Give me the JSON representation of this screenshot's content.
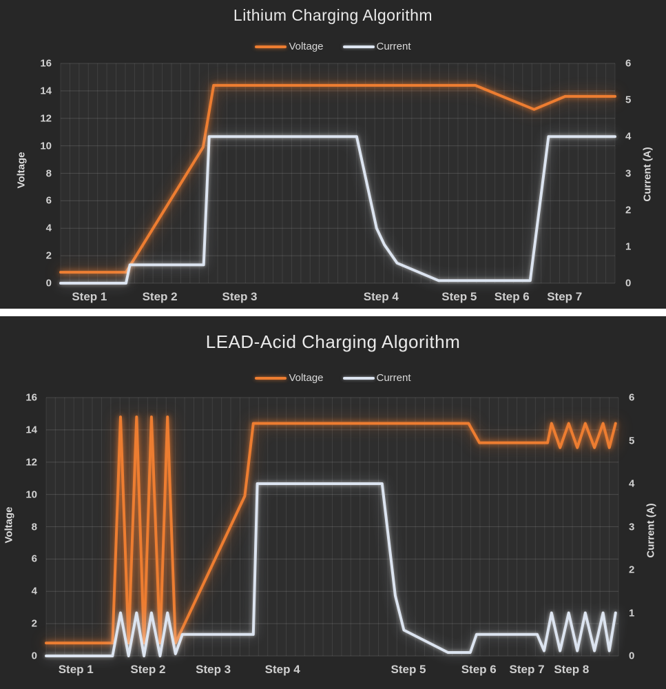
{
  "colors": {
    "background": "#272727",
    "plot_background": "#2e2e2e",
    "separator": "#ffffff",
    "voltage": "#ED7D31",
    "current": "#DCE4F0",
    "text": "#d9d9d9",
    "gridline": "rgba(255,255,255,0.09)"
  },
  "chart_data": [
    {
      "type": "line",
      "title": "Lithium Charging Algorithm",
      "legend_position": "top",
      "grid": "on",
      "y_left": {
        "label": "Voltage",
        "min": 0,
        "max": 16,
        "step": 2
      },
      "y_right": {
        "label": "Current (A)",
        "min": 0,
        "max": 6,
        "step": 1
      },
      "x_labels": [
        {
          "text": "Step 1",
          "pos": 5.2
        },
        {
          "text": "Step 2",
          "pos": 17.9
        },
        {
          "text": "Step 3",
          "pos": 32.3
        },
        {
          "text": "Step 4",
          "pos": 57.8
        },
        {
          "text": "Step 5",
          "pos": 71.9
        },
        {
          "text": "Step 6",
          "pos": 81.4
        },
        {
          "text": "Step 7",
          "pos": 90.9
        }
      ],
      "series": [
        {
          "name": "Voltage",
          "axis": "left",
          "color": "#ED7D31",
          "points": [
            [
              0,
              0.8
            ],
            [
              11.8,
              0.8
            ],
            [
              25.7,
              9.9
            ],
            [
              27.6,
              14.4
            ],
            [
              74.8,
              14.4
            ],
            [
              85.4,
              12.65
            ],
            [
              91,
              13.6
            ],
            [
              100,
              13.6
            ]
          ]
        },
        {
          "name": "Current",
          "axis": "right",
          "color": "#DCE4F0",
          "points": [
            [
              0,
              0
            ],
            [
              11.8,
              0
            ],
            [
              12.5,
              0.5
            ],
            [
              25.8,
              0.5
            ],
            [
              26.8,
              4
            ],
            [
              53.4,
              4
            ],
            [
              57,
              1.5
            ],
            [
              58.4,
              1.05
            ],
            [
              60.7,
              0.55
            ],
            [
              68.2,
              0.07
            ],
            [
              84.7,
              0.07
            ],
            [
              88,
              4
            ],
            [
              100,
              4
            ]
          ]
        }
      ]
    },
    {
      "type": "line",
      "title": "LEAD-Acid Charging Algorithm",
      "legend_position": "top",
      "grid": "on",
      "y_left": {
        "label": "Voltage",
        "min": 0,
        "max": 16,
        "step": 2
      },
      "y_right": {
        "label": "Current (A)",
        "min": 0,
        "max": 6,
        "step": 1
      },
      "x_labels": [
        {
          "text": "Step 1",
          "pos": 5.2
        },
        {
          "text": "Step 2",
          "pos": 17.8
        },
        {
          "text": "Step 3",
          "pos": 29.2
        },
        {
          "text": "Step 4",
          "pos": 41.3
        },
        {
          "text": "Step 5",
          "pos": 63.3
        },
        {
          "text": "Step 6",
          "pos": 75.6
        },
        {
          "text": "Step 7",
          "pos": 84.0
        },
        {
          "text": "Step 8",
          "pos": 91.8
        }
      ],
      "series": [
        {
          "name": "Voltage",
          "axis": "left",
          "color": "#ED7D31",
          "points": [
            [
              0,
              0.8
            ],
            [
              11.6,
              0.8
            ],
            [
              13,
              14.8
            ],
            [
              14.4,
              0.8
            ],
            [
              15.8,
              14.8
            ],
            [
              17.1,
              0.8
            ],
            [
              18.4,
              14.8
            ],
            [
              19.9,
              0.8
            ],
            [
              21.2,
              14.8
            ],
            [
              22.6,
              0.8
            ],
            [
              34.7,
              9.9
            ],
            [
              36.2,
              14.4
            ],
            [
              73.8,
              14.4
            ],
            [
              75.7,
              13.2
            ],
            [
              87.6,
              13.2
            ],
            [
              88.3,
              14.4
            ],
            [
              89.8,
              12.9
            ],
            [
              91.3,
              14.4
            ],
            [
              92.8,
              12.9
            ],
            [
              94.2,
              14.4
            ],
            [
              95.8,
              12.9
            ],
            [
              97.3,
              14.4
            ],
            [
              98.4,
              12.9
            ],
            [
              99.5,
              14.4
            ]
          ]
        },
        {
          "name": "Current",
          "axis": "right",
          "color": "#DCE4F0",
          "points": [
            [
              0,
              0
            ],
            [
              11.6,
              0
            ],
            [
              13,
              1
            ],
            [
              14.4,
              0
            ],
            [
              15.8,
              1
            ],
            [
              17.1,
              0
            ],
            [
              18.4,
              1
            ],
            [
              19.9,
              0
            ],
            [
              21.2,
              1
            ],
            [
              22.6,
              0.05
            ],
            [
              23.8,
              0.5
            ],
            [
              36.2,
              0.5
            ],
            [
              36.9,
              4
            ],
            [
              58.7,
              4
            ],
            [
              61,
              1.4
            ],
            [
              62.5,
              0.6
            ],
            [
              70.2,
              0.08
            ],
            [
              74.1,
              0.08
            ],
            [
              75.2,
              0.5
            ],
            [
              85.8,
              0.5
            ],
            [
              87,
              0.12
            ],
            [
              88.3,
              1
            ],
            [
              89.8,
              0.12
            ],
            [
              91.3,
              1
            ],
            [
              92.8,
              0.12
            ],
            [
              94.2,
              1
            ],
            [
              95.8,
              0.12
            ],
            [
              97.3,
              1
            ],
            [
              98.4,
              0.12
            ],
            [
              99.5,
              1
            ]
          ]
        }
      ]
    }
  ]
}
